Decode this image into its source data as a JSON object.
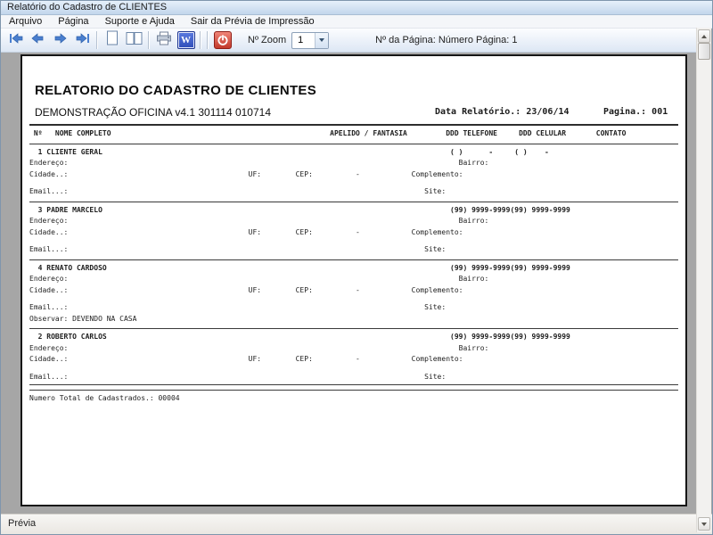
{
  "window": {
    "title": "Relatório do Cadastro de CLIENTES"
  },
  "menu": {
    "items": [
      "Arquivo",
      "Página",
      "Suporte e Ajuda",
      "Sair da Prévia de Impressão"
    ]
  },
  "toolbar": {
    "zoom_label": "Nº Zoom",
    "zoom_value": "1",
    "page_info": "Nº da Página: Número Página: 1",
    "word_glyph": "W",
    "icons": [
      "first-page",
      "previous-page",
      "next-page",
      "last-page",
      "single-page-view",
      "two-page-view",
      "print",
      "export-word",
      "close-preview"
    ]
  },
  "report": {
    "title": "RELATORIO DO CADASTRO DE CLIENTES",
    "subtitle": "DEMONSTRAÇÃO OFICINA v4.1 301114 010714",
    "date_label": "Data Relatório.: 23/06/14",
    "page_label": "Pagina.: 001",
    "lines": [
      {
        "style": "rule0"
      },
      {
        "style": "b",
        "segs": [
          {
            "c": 1,
            "t": "Nº"
          },
          {
            "c": 6,
            "t": "NOME COMPLETO"
          },
          {
            "c": 70,
            "t": "APELIDO / FANTASIA"
          },
          {
            "c": 97,
            "t": "DDD TELEFONE"
          },
          {
            "c": 114,
            "t": "DDD CELULAR"
          },
          {
            "c": 132,
            "t": "CONTATO"
          }
        ]
      },
      {
        "style": "rule"
      },
      {
        "style": "b",
        "segs": [
          {
            "c": 2,
            "t": "1"
          },
          {
            "c": 4,
            "t": "CLIENTE GERAL"
          },
          {
            "c": 98,
            "t": "( )"
          },
          {
            "c": 107,
            "t": "-"
          },
          {
            "c": 113,
            "t": "( )"
          },
          {
            "c": 120,
            "t": "-"
          }
        ]
      },
      {
        "segs": [
          {
            "c": 0,
            "t": "Endereço:"
          },
          {
            "c": 100,
            "t": "Bairro:"
          }
        ]
      },
      {
        "segs": [
          {
            "c": 0,
            "t": "Cidade..:"
          },
          {
            "c": 51,
            "t": "UF:"
          },
          {
            "c": 62,
            "t": "CEP:"
          },
          {
            "c": 76,
            "t": "-"
          },
          {
            "c": 89,
            "t": "Complemento:"
          }
        ]
      },
      {
        "style": "blank"
      },
      {
        "segs": [
          {
            "c": 0,
            "t": "Email...:"
          },
          {
            "c": 92,
            "t": "Site:"
          }
        ]
      },
      {
        "style": "rule"
      },
      {
        "style": "b",
        "segs": [
          {
            "c": 2,
            "t": "3"
          },
          {
            "c": 4,
            "t": "PADRE MARCELO"
          },
          {
            "c": 98,
            "t": "(99) 9999-9999(99) 9999-9999"
          }
        ]
      },
      {
        "segs": [
          {
            "c": 0,
            "t": "Endereço:"
          },
          {
            "c": 100,
            "t": "Bairro:"
          }
        ]
      },
      {
        "segs": [
          {
            "c": 0,
            "t": "Cidade..:"
          },
          {
            "c": 51,
            "t": "UF:"
          },
          {
            "c": 62,
            "t": "CEP:"
          },
          {
            "c": 76,
            "t": "-"
          },
          {
            "c": 89,
            "t": "Complemento:"
          }
        ]
      },
      {
        "style": "blank"
      },
      {
        "segs": [
          {
            "c": 0,
            "t": "Email...:"
          },
          {
            "c": 92,
            "t": "Site:"
          }
        ]
      },
      {
        "style": "rule"
      },
      {
        "style": "b",
        "segs": [
          {
            "c": 2,
            "t": "4"
          },
          {
            "c": 4,
            "t": "RENATO CARDOSO"
          },
          {
            "c": 98,
            "t": "(99) 9999-9999(99) 9999-9999"
          }
        ]
      },
      {
        "segs": [
          {
            "c": 0,
            "t": "Endereço:"
          },
          {
            "c": 100,
            "t": "Bairro:"
          }
        ]
      },
      {
        "segs": [
          {
            "c": 0,
            "t": "Cidade..:"
          },
          {
            "c": 51,
            "t": "UF:"
          },
          {
            "c": 62,
            "t": "CEP:"
          },
          {
            "c": 76,
            "t": "-"
          },
          {
            "c": 89,
            "t": "Complemento:"
          }
        ]
      },
      {
        "style": "blank"
      },
      {
        "segs": [
          {
            "c": 0,
            "t": "Email...:"
          },
          {
            "c": 92,
            "t": "Site:"
          }
        ]
      },
      {
        "segs": [
          {
            "c": 0,
            "t": "Observar: DEVENDO NA CASA"
          }
        ]
      },
      {
        "style": "rule"
      },
      {
        "style": "b",
        "segs": [
          {
            "c": 2,
            "t": "2"
          },
          {
            "c": 4,
            "t": "ROBERTO CARLOS"
          },
          {
            "c": 98,
            "t": "(99) 9999-9999(99) 9999-9999"
          }
        ]
      },
      {
        "segs": [
          {
            "c": 0,
            "t": "Endereço:"
          },
          {
            "c": 100,
            "t": "Bairro:"
          }
        ]
      },
      {
        "segs": [
          {
            "c": 0,
            "t": "Cidade..:"
          },
          {
            "c": 51,
            "t": "UF:"
          },
          {
            "c": 62,
            "t": "CEP:"
          },
          {
            "c": 76,
            "t": "-"
          },
          {
            "c": 89,
            "t": "Complemento:"
          }
        ]
      },
      {
        "style": "blank"
      },
      {
        "segs": [
          {
            "c": 0,
            "t": "Email...:"
          },
          {
            "c": 92,
            "t": "Site:"
          }
        ]
      },
      {
        "style": "rule2"
      },
      {
        "segs": [
          {
            "c": 0,
            "t": "Numero Total de Cadastrados.: 00004"
          }
        ]
      }
    ]
  },
  "statusbar": {
    "text": "Prévia"
  },
  "colors": {
    "preview_bg": "#a6a6a6",
    "nav_arrow": "#4a7fcf",
    "word_icon": "#3a55c0",
    "exit_icon": "#cc3322",
    "page_border": "#161616"
  }
}
